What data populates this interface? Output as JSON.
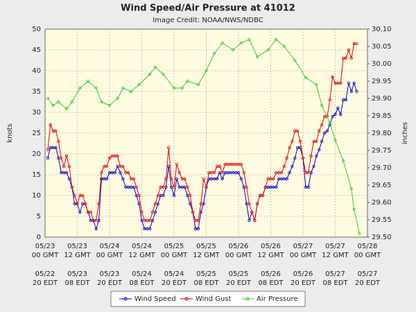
{
  "chart_data": {
    "type": "line",
    "title": "Wind Speed/Air Pressure at 41012",
    "subtitle": "Image Credit: NOAA/NWS/NDBC",
    "ylabel": "knots",
    "y2label": "inches",
    "xlim": [
      "05/23 00:00",
      "05/28 00:00"
    ],
    "xticks": [
      {
        "value": "05/23 00:00",
        "label": [
          "05/23",
          "00 GMT"
        ]
      },
      {
        "value": "05/23 12:00",
        "label": [
          "05/23",
          "12 GMT"
        ]
      },
      {
        "value": "05/24 00:00",
        "label": [
          "05/24",
          "00 GMT"
        ]
      },
      {
        "value": "05/24 12:00",
        "label": [
          "05/24",
          "12 GMT"
        ]
      },
      {
        "value": "05/25 00:00",
        "label": [
          "05/25",
          "00 GMT"
        ]
      },
      {
        "value": "05/25 12:00",
        "label": [
          "05/25",
          "12 GMT"
        ]
      },
      {
        "value": "05/26 00:00",
        "label": [
          "05/26",
          "00 GMT"
        ]
      },
      {
        "value": "05/26 12:00",
        "label": [
          "05/26",
          "12 GMT"
        ]
      },
      {
        "value": "05/27 00:00",
        "label": [
          "05/27",
          "00 GMT"
        ]
      },
      {
        "value": "05/27 12:00",
        "label": [
          "05/27",
          "12 GMT"
        ]
      },
      {
        "value": "05/28 00:00",
        "label": [
          "05/28",
          "00 GMT"
        ]
      }
    ],
    "x2ticklabels": [
      [
        "05/22",
        "20 EDT"
      ],
      [
        "05/23",
        "08 EDT"
      ],
      [
        "05/23",
        "20 EDT"
      ],
      [
        "05/24",
        "08 EDT"
      ],
      [
        "05/24",
        "20 EDT"
      ],
      [
        "05/25",
        "08 EDT"
      ],
      [
        "05/25",
        "20 EDT"
      ],
      [
        "05/26",
        "08 EDT"
      ],
      [
        "05/26",
        "20 EDT"
      ],
      [
        "05/27",
        "08 EDT"
      ],
      [
        "05/27",
        "20 EDT"
      ]
    ],
    "ylim": [
      0,
      50
    ],
    "yticks": [
      0,
      5,
      10,
      15,
      20,
      25,
      30,
      35,
      40,
      45,
      50
    ],
    "y2lim": [
      29.5,
      30.1
    ],
    "y2ticks": [
      {
        "value": 29.5,
        "label": "29.50"
      },
      29.55,
      {
        "value": 29.6,
        "label": "29.60"
      },
      29.65,
      {
        "value": 29.7,
        "label": "29.70"
      },
      29.75,
      {
        "value": 29.8,
        "label": "29.80"
      },
      29.85,
      {
        "value": 29.9,
        "label": "29.90"
      },
      29.95,
      {
        "value": 30,
        "label": "30.00"
      },
      30.05,
      {
        "value": 30.1,
        "label": "30.10"
      }
    ],
    "grid": true,
    "x": [
      "05/23 01:00",
      "05/23 02:00",
      "05/23 03:00",
      "05/23 04:00",
      "05/23 05:00",
      "05/23 06:00",
      "05/23 07:00",
      "05/23 08:00",
      "05/23 09:00",
      "05/23 10:00",
      "05/23 11:00",
      "05/23 12:00",
      "05/23 13:00",
      "05/23 14:00",
      "05/23 15:00",
      "05/23 16:00",
      "05/23 17:00",
      "05/23 18:00",
      "05/23 19:00",
      "05/23 20:00",
      "05/23 21:00",
      "05/23 22:00",
      "05/23 23:00",
      "05/24 00:00",
      "05/24 01:00",
      "05/24 02:00",
      "05/24 03:00",
      "05/24 04:00",
      "05/24 05:00",
      "05/24 06:00",
      "05/24 07:00",
      "05/24 08:00",
      "05/24 09:00",
      "05/24 10:00",
      "05/24 11:00",
      "05/24 12:00",
      "05/24 13:00",
      "05/24 14:00",
      "05/24 15:00",
      "05/24 16:00",
      "05/24 17:00",
      "05/24 18:00",
      "05/24 19:00",
      "05/24 20:00",
      "05/24 21:00",
      "05/24 22:00",
      "05/24 23:00",
      "05/25 00:00",
      "05/25 01:00",
      "05/25 02:00",
      "05/25 03:00",
      "05/25 04:00",
      "05/25 05:00",
      "05/25 06:00",
      "05/25 07:00",
      "05/25 08:00",
      "05/25 09:00",
      "05/25 10:00",
      "05/25 11:00",
      "05/25 12:00",
      "05/25 13:00",
      "05/25 14:00",
      "05/25 15:00",
      "05/25 16:00",
      "05/25 17:00",
      "05/25 18:00",
      "05/25 19:00",
      "05/25 20:00",
      "05/25 21:00",
      "05/25 22:00",
      "05/25 23:00",
      "05/26 00:00",
      "05/26 01:00",
      "05/26 02:00",
      "05/26 03:00",
      "05/26 04:00",
      "05/26 05:00",
      "05/26 06:00",
      "05/26 07:00",
      "05/26 08:00",
      "05/26 09:00",
      "05/26 10:00",
      "05/26 11:00",
      "05/26 12:00",
      "05/26 13:00",
      "05/26 14:00",
      "05/26 15:00",
      "05/26 16:00",
      "05/26 17:00",
      "05/26 18:00",
      "05/26 19:00",
      "05/26 20:00",
      "05/26 21:00",
      "05/26 22:00",
      "05/26 23:00",
      "05/27 00:00",
      "05/27 01:00",
      "05/27 02:00",
      "05/27 03:00",
      "05/27 04:00",
      "05/27 05:00",
      "05/27 06:00",
      "05/27 07:00",
      "05/27 08:00",
      "05/27 09:00",
      "05/27 10:00",
      "05/27 11:00",
      "05/27 12:00",
      "05/27 13:00",
      "05/27 14:00",
      "05/27 15:00",
      "05/27 16:00",
      "05/27 17:00",
      "05/27 18:00",
      "05/27 19:00",
      "05/27 20:00"
    ],
    "series": [
      {
        "name": "Wind Speed",
        "color": "#0000cc",
        "values": [
          19,
          21.5,
          21.5,
          21.5,
          19,
          15.5,
          15.5,
          15.5,
          14,
          12,
          8,
          8,
          6,
          8,
          8,
          6,
          4,
          4,
          2,
          4,
          14,
          14,
          14,
          15.5,
          15.5,
          15.5,
          17,
          15.5,
          14,
          12,
          12,
          12,
          12,
          10,
          8,
          4,
          2,
          2,
          2,
          4,
          6,
          8,
          10,
          10,
          12,
          17,
          12,
          10,
          14,
          12,
          12,
          12,
          10,
          8,
          6,
          2,
          2,
          6,
          8,
          12,
          14,
          14,
          14,
          14,
          15.5,
          14,
          15.5,
          15.5,
          15.5,
          15.5,
          15.5,
          15.5,
          14,
          12,
          8,
          4,
          6,
          4,
          8,
          10,
          10,
          12,
          12,
          12,
          12,
          12,
          14,
          14,
          14,
          14,
          15.5,
          17,
          19,
          21.5,
          21.5,
          19,
          12,
          12,
          15.5,
          17,
          19.5,
          21,
          23,
          25,
          25.5,
          27,
          29,
          29.5,
          31,
          29.5,
          33,
          33,
          37,
          35,
          37,
          35
        ]
      },
      {
        "name": "Wind Gust",
        "color": "#dd0000",
        "values": [
          21,
          27,
          25.5,
          25.5,
          23,
          19,
          17,
          19.5,
          17,
          12,
          10,
          8,
          10,
          10,
          8,
          6,
          6,
          4,
          4,
          8,
          15.5,
          17,
          17,
          19,
          19.5,
          19.5,
          19.5,
          17,
          17,
          15.5,
          15.5,
          14,
          14,
          12,
          10,
          6,
          4,
          4,
          4,
          6,
          8,
          10,
          12,
          12,
          14,
          21.5,
          14,
          12,
          17.5,
          15.5,
          14,
          14,
          12,
          10,
          6,
          4,
          4,
          8,
          14,
          12,
          15.5,
          15.5,
          15.5,
          17,
          17,
          15.5,
          17.5,
          17.5,
          17.5,
          17.5,
          17.5,
          17.5,
          17.5,
          15.5,
          12,
          8,
          6,
          4,
          8,
          10,
          10,
          12,
          14,
          14,
          14,
          15.5,
          15.5,
          15.5,
          17,
          19,
          21.5,
          23,
          25.5,
          25.5,
          23,
          19,
          15.5,
          15.5,
          19.5,
          23,
          23,
          25.5,
          27,
          29,
          29,
          33,
          38.5,
          37,
          37,
          37,
          43,
          43,
          45,
          43,
          46.5,
          46.5
        ]
      },
      {
        "name": "Air Pressure",
        "color": "#33cc33",
        "axis": "y2",
        "x": [
          "05/23 01:00",
          "05/23 03:00",
          "05/23 05:00",
          "05/23 08:00",
          "05/23 10:00",
          "05/23 13:00",
          "05/23 16:00",
          "05/23 19:00",
          "05/23 21:00",
          "05/24 00:00",
          "05/24 03:00",
          "05/24 05:00",
          "05/24 08:00",
          "05/24 11:00",
          "05/24 15:00",
          "05/24 17:00",
          "05/24 20:00",
          "05/25 00:00",
          "05/25 03:00",
          "05/25 05:00",
          "05/25 09:00",
          "05/25 12:00",
          "05/25 15:00",
          "05/25 18:00",
          "05/25 22:00",
          "05/26 01:00",
          "05/26 04:00",
          "05/26 07:00",
          "05/26 11:00",
          "05/26 14:00",
          "05/26 17:00",
          "05/26 21:00",
          "05/27 01:00",
          "05/27 05:00",
          "05/27 07:00",
          "05/27 10:00",
          "05/27 12:00",
          "05/27 15:00",
          "05/27 18:00",
          "05/27 19:00",
          "05/27 21:00"
        ],
        "values": [
          29.9,
          29.88,
          29.89,
          29.87,
          29.89,
          29.93,
          29.95,
          29.93,
          29.89,
          29.88,
          29.9,
          29.93,
          29.92,
          29.94,
          29.97,
          29.99,
          29.97,
          29.93,
          29.93,
          29.95,
          29.94,
          29.98,
          30.03,
          30.06,
          30.04,
          30.06,
          30.07,
          30.02,
          30.04,
          30.07,
          30.05,
          30.01,
          29.96,
          29.94,
          29.88,
          29.83,
          29.78,
          29.72,
          29.64,
          29.58,
          29.51
        ]
      }
    ]
  }
}
